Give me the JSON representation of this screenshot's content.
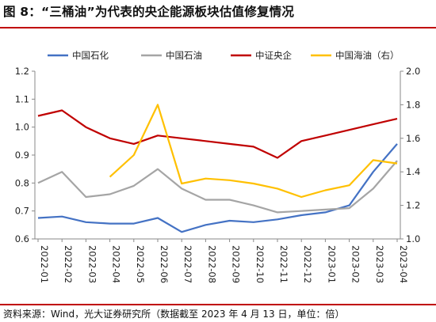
{
  "title": "图 8：“三桶油”为代表的央企能源板块估值修复情况",
  "source": "资料来源：Wind，光大证券研究所（数据截至 2023 年 4 月 13 日，单位：倍）",
  "chart_data": {
    "type": "line",
    "title": "图 8：“三桶油”为代表的央企能源板块估值修复情况",
    "xlabel": "",
    "ylabel": "",
    "x": [
      "2022-01",
      "2022-02",
      "2022-03",
      "2022-04",
      "2022-05",
      "2022-06",
      "2022-07",
      "2022-08",
      "2022-09",
      "2022-10",
      "2022-11",
      "2022-12",
      "2023-01",
      "2023-02",
      "2023-03",
      "2023-04"
    ],
    "x_ticks": [
      "2022-01",
      "2022-02",
      "2022-03",
      "2022-04",
      "2022-05",
      "2022-06",
      "2022-07",
      "2022-08",
      "2022-09",
      "2022-10",
      "2022-11",
      "2022-12",
      "2023-01",
      "2023-02",
      "2023-03",
      "2023-04"
    ],
    "y_left": {
      "range": [
        0.6,
        1.2
      ],
      "ticks": [
        "0.6",
        "0.7",
        "0.8",
        "0.9",
        "1.0",
        "1.1",
        "1.2"
      ]
    },
    "y_right": {
      "range": [
        1.0,
        2.0
      ],
      "ticks": [
        "1.0",
        "1.2",
        "1.4",
        "1.6",
        "1.8",
        "2.0"
      ]
    },
    "grid": false,
    "legend_position": "top",
    "series": [
      {
        "name": "中国石化",
        "color": "#4472c4",
        "axis": "left",
        "values": [
          0.675,
          0.68,
          0.66,
          0.655,
          0.655,
          0.675,
          0.625,
          0.65,
          0.665,
          0.66,
          0.67,
          0.685,
          0.695,
          0.72,
          0.84,
          0.94
        ]
      },
      {
        "name": "中国石油",
        "color": "#a5a5a5",
        "axis": "left",
        "values": [
          0.8,
          0.84,
          0.75,
          0.76,
          0.79,
          0.85,
          0.78,
          0.74,
          0.74,
          0.72,
          0.695,
          0.7,
          0.705,
          0.71,
          0.78,
          0.88
        ]
      },
      {
        "name": "中证央企",
        "color": "#c00000",
        "axis": "left",
        "values": [
          1.04,
          1.06,
          1.0,
          0.96,
          0.94,
          0.97,
          0.96,
          0.95,
          0.94,
          0.93,
          0.89,
          0.95,
          0.97,
          0.99,
          1.01,
          1.03
        ]
      },
      {
        "name": "中国海油（右）",
        "color": "#ffc000",
        "axis": "right",
        "values": [
          null,
          null,
          null,
          1.37,
          1.5,
          1.8,
          1.33,
          1.36,
          1.35,
          1.33,
          1.3,
          1.25,
          1.29,
          1.32,
          1.47,
          1.45
        ]
      }
    ]
  }
}
